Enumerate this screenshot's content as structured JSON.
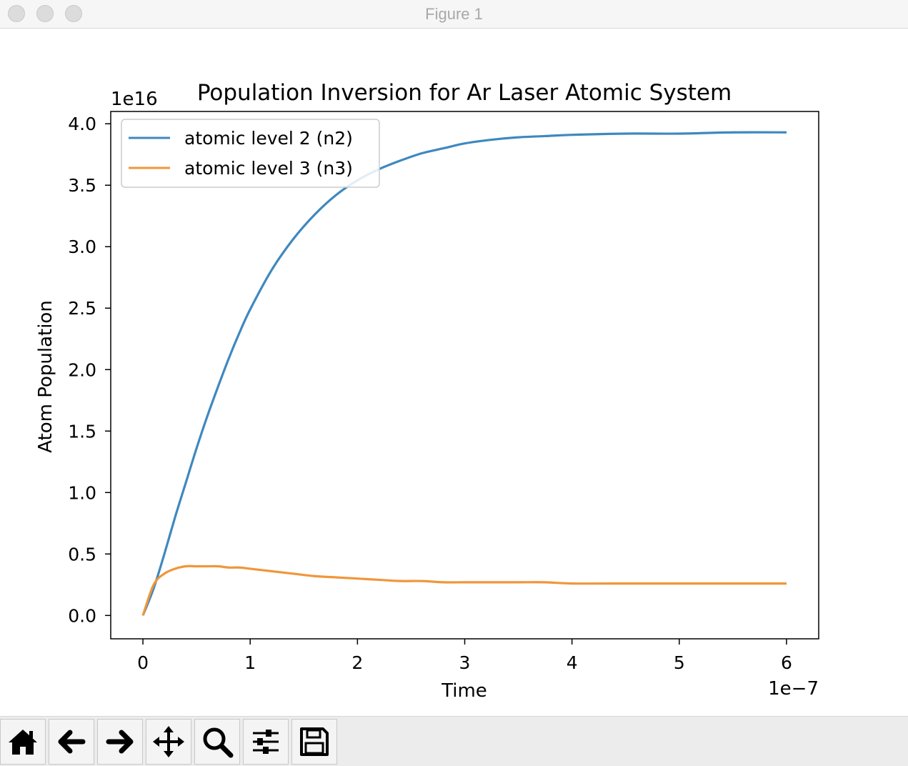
{
  "window": {
    "title": "Figure 1"
  },
  "toolbar": {
    "buttons": [
      {
        "icon": "home-icon"
      },
      {
        "icon": "back-arrow-icon"
      },
      {
        "icon": "forward-arrow-icon"
      },
      {
        "icon": "pan-move-icon"
      },
      {
        "icon": "zoom-magnifier-icon"
      },
      {
        "icon": "configure-subplots-icon"
      },
      {
        "icon": "save-floppy-icon"
      }
    ]
  },
  "chart_data": {
    "type": "line",
    "title": "Population Inversion for Ar Laser Atomic System",
    "xlabel": "Time",
    "ylabel": "Atom Population",
    "x_offset_text": "1e−7",
    "y_offset_text": "1e16",
    "xlim": [
      -0.3,
      6.3
    ],
    "ylim": [
      -0.19,
      4.1
    ],
    "x_ticks": [
      0,
      1,
      2,
      3,
      4,
      5,
      6
    ],
    "x_tick_labels": [
      "0",
      "1",
      "2",
      "3",
      "4",
      "5",
      "6"
    ],
    "y_ticks": [
      0.0,
      0.5,
      1.0,
      1.5,
      2.0,
      2.5,
      3.0,
      3.5,
      4.0
    ],
    "y_tick_labels": [
      "0.0",
      "0.5",
      "1.0",
      "1.5",
      "2.0",
      "2.5",
      "3.0",
      "3.5",
      "4.0"
    ],
    "grid": false,
    "legend_position": "upper-left",
    "x": [
      0,
      0.1,
      0.2,
      0.3,
      0.4,
      0.5,
      0.6,
      0.7,
      0.8,
      0.9,
      1.0,
      1.2,
      1.4,
      1.6,
      1.8,
      2.0,
      2.2,
      2.4,
      2.6,
      2.8,
      3.0,
      3.25,
      3.5,
      3.75,
      4.0,
      4.5,
      5.0,
      5.5,
      6.0
    ],
    "series": [
      {
        "name": "atomic level 2 (n2)",
        "color": "#3f88bf",
        "values": [
          0.0,
          0.22,
          0.5,
          0.8,
          1.08,
          1.36,
          1.62,
          1.86,
          2.09,
          2.3,
          2.49,
          2.81,
          3.06,
          3.26,
          3.42,
          3.54,
          3.63,
          3.7,
          3.76,
          3.8,
          3.84,
          3.87,
          3.89,
          3.9,
          3.91,
          3.92,
          3.92,
          3.93,
          3.93
        ]
      },
      {
        "name": "atomic level 3 (n3)",
        "color": "#f0963a",
        "values": [
          0.0,
          0.25,
          0.34,
          0.38,
          0.4,
          0.4,
          0.4,
          0.4,
          0.39,
          0.39,
          0.38,
          0.36,
          0.34,
          0.32,
          0.31,
          0.3,
          0.29,
          0.28,
          0.28,
          0.27,
          0.27,
          0.27,
          0.27,
          0.27,
          0.26,
          0.26,
          0.26,
          0.26,
          0.26
        ]
      }
    ]
  }
}
